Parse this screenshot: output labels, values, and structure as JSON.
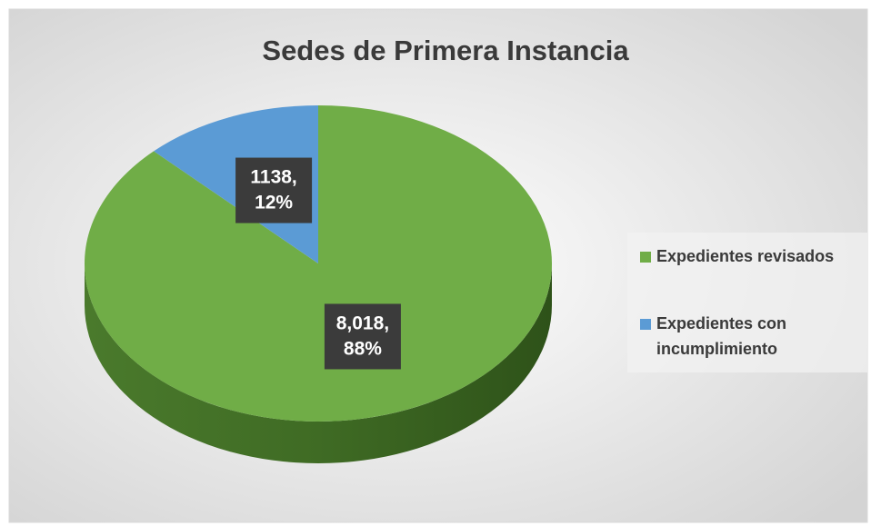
{
  "chart_data": {
    "type": "pie",
    "title": "Sedes de Primera Instancia",
    "categories": [
      "Expedientes revisados",
      "Expedientes con incumplimiento"
    ],
    "values": [
      8018,
      1138
    ],
    "value_labels": [
      [
        "8,018,",
        "88%"
      ],
      [
        "1138,",
        "12%"
      ]
    ],
    "colors": [
      "#70ad47",
      "#5b9bd5"
    ],
    "legend": "right"
  }
}
